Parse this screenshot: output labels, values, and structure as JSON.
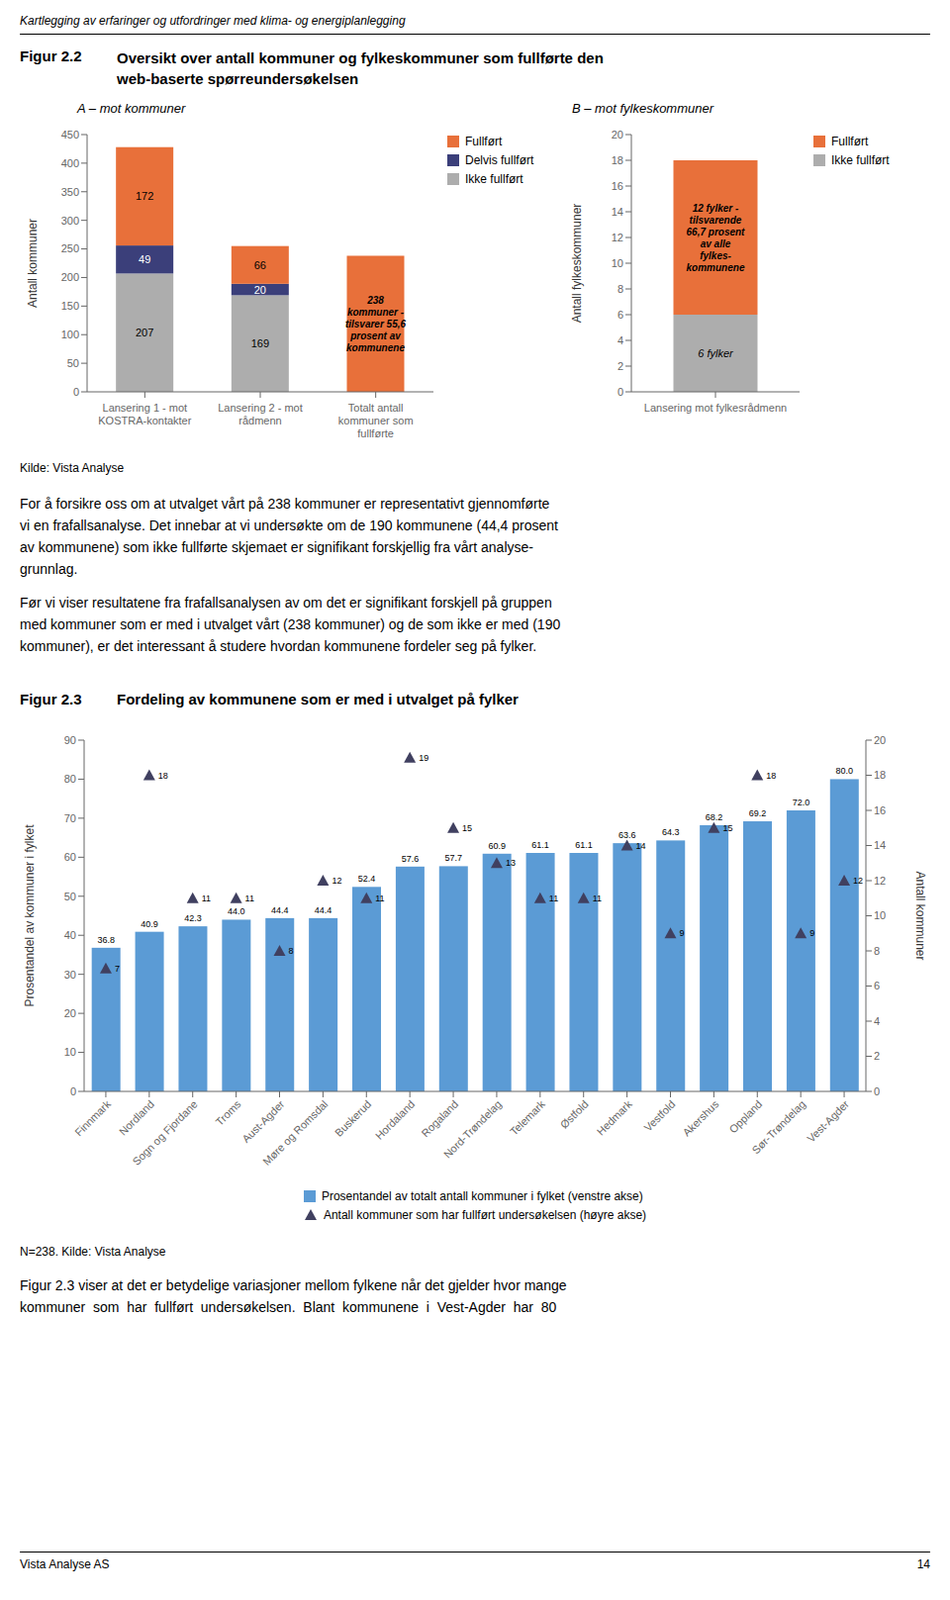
{
  "chart_data": [
    {
      "type": "bar",
      "stacked": true,
      "title": "Figur 2.2",
      "subtitle": "Oversikt over antall kommuner og fylkeskommuner som fullførte den\nweb-baserte spørreundersøkelsen",
      "ylabel": "Antall kommuner",
      "categories": [
        "Lansering 1 - mot\nKOSTRA-kontakter",
        "Lansering 2 - mot\nrådmenn",
        "Totalt antall\nkommuner som\nfullførte"
      ],
      "series": [
        {
          "name": "Fullført",
          "color": "#E8703A",
          "values": [
            172,
            66,
            238
          ],
          "value_labels": [
            "172",
            "66",
            null
          ]
        },
        {
          "name": "Delvis fullført",
          "color": "#3B3F7A",
          "values": [
            49,
            20,
            0
          ],
          "value_labels": [
            "49",
            "20",
            null
          ]
        },
        {
          "name": "Ikke fullført",
          "color": "#ADADAD",
          "values": [
            207,
            169,
            0
          ],
          "value_labels": [
            "207",
            "169",
            null
          ]
        }
      ],
      "ylim": [
        0,
        450
      ],
      "yticks": [
        0,
        50,
        100,
        150,
        200,
        250,
        300,
        350,
        400,
        450
      ],
      "legend": "upper right",
      "annotations": [
        "Kartlegging av erfaringer og utfordringer med klima- og energiplanlegging",
        "A – mot kommuner",
        "238\nkommuner -\ntilsvarer 55,6\nprosent av\nkommunene",
        "Kilde: Vista Analyse",
        "For å forsikre oss om at utvalget vårt på 238 kommuner er representativt gjennomførte",
        "vi en frafallsanalyse. Det innebar at vi undersøkte om de 190 kommunene (44,4 prosent",
        "av kommunene) som ikke fullførte skjemaet er signifikant forskjellig fra vårt analyse-",
        "grunnlag.",
        "Før vi viser resultatene fra frafallsanalysen av om det er signifikant forskjell på gruppen",
        "med kommuner som er med i utvalget vårt (238 kommuner) og de som ikke er med (190",
        "kommuner), er det interessant å studere hvordan kommunene fordeler seg på fylker."
      ]
    },
    {
      "type": "bar",
      "stacked": true,
      "title": "B – mot fylkeskommuner",
      "ylabel": "Antall fylkeskommuner",
      "categories": [
        "Lansering mot fylkesrådmenn"
      ],
      "series": [
        {
          "name": "Fullført",
          "color": "#E8703A",
          "values": [
            12
          ]
        },
        {
          "name": "Ikke fullført",
          "color": "#ADADAD",
          "values": [
            6
          ],
          "value_labels": [
            "6 fylker"
          ]
        }
      ],
      "ylim": [
        0,
        20
      ],
      "yticks": [
        0,
        2,
        4,
        6,
        8,
        10,
        12,
        14,
        16,
        18,
        20
      ],
      "legend": "upper right",
      "annotations": [
        "12 fylker -\ntilsvarende\n66,7 prosent\nav alle\nfylkes-\nkommunene"
      ]
    },
    {
      "type": "bar",
      "title": "Figur 2.3",
      "subtitle": "Fordeling av kommunene som er med i utvalget på fylker",
      "ylabel": "Prosentandel av kommuner i fylket",
      "y2label": "Antall kommuner",
      "categories": [
        "Finnmark",
        "Nordland",
        "Sogn og Fjordane",
        "Troms",
        "Aust-Agder",
        "Møre og Romsdal",
        "Buskerud",
        "Hordaland",
        "Rogaland",
        "Nord-Trøndelag",
        "Telemark",
        "Østfold",
        "Hedmark",
        "Vestfold",
        "Akershus",
        "Oppland",
        "Sør-Trøndelag",
        "Vest-Agder"
      ],
      "series": [
        {
          "name": "Prosentandel av totalt antall kommuner i fylket (venstre akse)",
          "type": "bar",
          "color": "#5B9BD5",
          "values": [
            36.8,
            40.9,
            42.3,
            44.0,
            44.4,
            44.4,
            52.4,
            57.6,
            57.7,
            60.9,
            61.1,
            61.1,
            63.6,
            64.3,
            68.2,
            69.2,
            72.0,
            80.0
          ],
          "value_labels": [
            "36.8",
            "40.9",
            "42.3",
            "44.0",
            "44.4",
            "44.4",
            "52.4",
            "57.6",
            "57.7",
            "60.9",
            "61.1",
            "61.1",
            "63.6",
            "64.3",
            "68.2",
            "69.2",
            "72.0",
            "80.0"
          ]
        },
        {
          "name": "Antall kommuner som har fullført undersøkelsen (høyre akse)",
          "type": "scatter",
          "marker": "triangle",
          "color": "#404060",
          "axis": "y2",
          "values": [
            7,
            18,
            11,
            11,
            8,
            12,
            11,
            19,
            15,
            13,
            11,
            11,
            14,
            9,
            15,
            18,
            9,
            12
          ]
        }
      ],
      "ylim": [
        0,
        90
      ],
      "yticks": [
        0,
        10,
        20,
        30,
        40,
        50,
        60,
        70,
        80,
        90
      ],
      "y2lim": [
        0,
        20
      ],
      "y2ticks": [
        0,
        2,
        4,
        6,
        8,
        10,
        12,
        14,
        16,
        18,
        20
      ],
      "data_labels": true,
      "legend": "lower center",
      "annotations": [
        "N=238. Kilde: Vista Analyse",
        "Figur 2.3 viser at det er betydelige variasjoner mellom fylkene når det gjelder hvor mange",
        "kommuner  som  har  fullført  undersøkelsen.  Blant  kommunene  i  Vest-Agder  har  80",
        "Vista Analyse AS",
        "14"
      ]
    }
  ]
}
